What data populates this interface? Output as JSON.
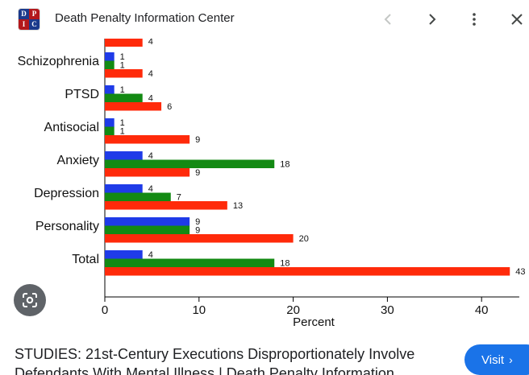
{
  "header": {
    "site_name": "Death Penalty Information Center",
    "favicon_letters": [
      "D",
      "P",
      "I",
      "C"
    ]
  },
  "nav": {
    "prev_icon": "chevron-left-icon",
    "next_icon": "chevron-right-icon",
    "more_icon": "more-vert-icon",
    "close_icon": "close-icon"
  },
  "chart_data": {
    "type": "bar",
    "orientation": "horizontal",
    "xlabel": "Percent",
    "xlim": [
      0,
      44
    ],
    "xticks": [
      0,
      10,
      20,
      30,
      40
    ],
    "categories": [
      "Total",
      "Personality",
      "Depression",
      "Anxiety",
      "Antisocial",
      "PTSD",
      "Schizophrenia"
    ],
    "series": [
      {
        "name": "blue",
        "color": "#1f3be8",
        "values": [
          4,
          9,
          4,
          4,
          1,
          1,
          1
        ]
      },
      {
        "name": "green",
        "color": "#138a13",
        "values": [
          18,
          9,
          7,
          18,
          1,
          4,
          1
        ]
      },
      {
        "name": "red",
        "color": "#ff2a0a",
        "values": [
          43,
          20,
          13,
          9,
          9,
          6,
          4
        ]
      }
    ],
    "partial_top_value": 4
  },
  "lens": {
    "icon": "lens-search-icon"
  },
  "caption": {
    "line1": "STUDIES: 21st-Century Executions Disproportionately Involve",
    "line2": "Defendants With Mental Illness | Death Penalty Information"
  },
  "visit": {
    "label": "Visit",
    "chevron": "›"
  }
}
